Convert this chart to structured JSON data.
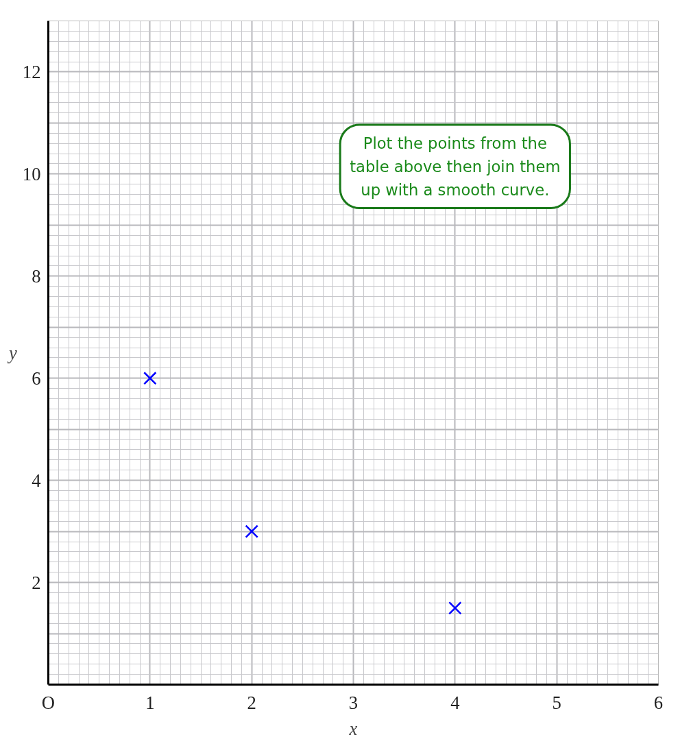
{
  "chart_data": {
    "type": "scatter",
    "xlabel": "x",
    "ylabel": "y",
    "x": [
      1,
      2,
      4
    ],
    "series": [
      {
        "color": "#0000ff",
        "values": [
          6,
          3,
          1.5
        ]
      }
    ],
    "xlim": [
      0,
      6
    ],
    "ylim": [
      0,
      13
    ],
    "xticks": [
      {
        "value": 0,
        "label": "O"
      },
      1,
      2,
      3,
      4,
      5,
      6
    ],
    "yticks": [
      2,
      4,
      6,
      8,
      10,
      12
    ],
    "grid": true,
    "marker": "cross",
    "annotations": [
      "Plot the points from the table above then join them up with a smooth curve."
    ]
  }
}
